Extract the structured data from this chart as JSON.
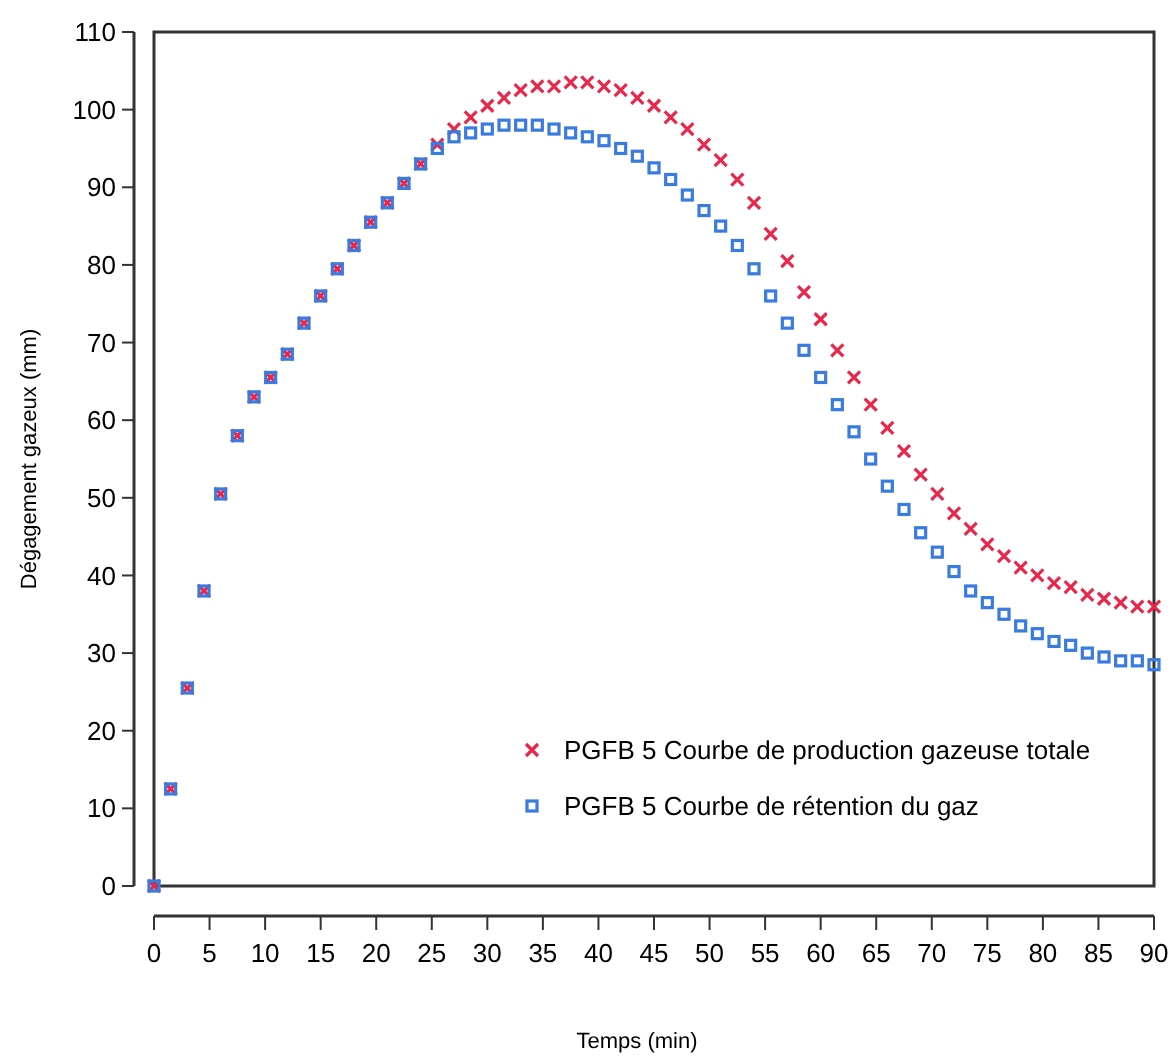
{
  "chart_data": {
    "type": "scatter",
    "xlabel": "Temps (min)",
    "ylabel": "Dégagement gazeux (mm)",
    "x": [
      0,
      1.5,
      3,
      4.5,
      6,
      7.5,
      9,
      10.5,
      12,
      13.5,
      15,
      16.5,
      18,
      19.5,
      21,
      22.5,
      24,
      25.5,
      27,
      28.5,
      30,
      31.5,
      33,
      34.5,
      36,
      37.5,
      39,
      40.5,
      42,
      43.5,
      45,
      46.5,
      48,
      49.5,
      51,
      52.5,
      54,
      55.5,
      57,
      58.5,
      60,
      61.5,
      63,
      64.5,
      66,
      67.5,
      69,
      70.5,
      72,
      73.5,
      75,
      76.5,
      78,
      79.5,
      81,
      82.5,
      84,
      85.5,
      87,
      88.5,
      90
    ],
    "series": [
      {
        "name": "PGFB 5 Courbe de production gazeuse totale",
        "color": "#e8274b",
        "marker": "cross",
        "values": [
          0,
          12.5,
          25.5,
          38,
          50.5,
          58,
          63,
          65.5,
          68.5,
          72.5,
          76,
          79.5,
          82.5,
          85.5,
          88,
          90.5,
          93,
          95.5,
          97.5,
          99,
          100.5,
          101.5,
          102.5,
          103,
          103,
          103.5,
          103.5,
          103,
          102.5,
          101.5,
          100.5,
          99,
          97.5,
          95.5,
          93.5,
          91,
          88,
          84,
          80.5,
          76.5,
          73,
          69,
          65.5,
          62,
          59,
          56,
          53,
          50.5,
          48,
          46,
          44,
          42.5,
          41,
          40,
          39,
          38.5,
          37.5,
          37,
          36.5,
          36,
          36
        ]
      },
      {
        "name": "PGFB 5 Courbe de rétention du gaz",
        "color": "#3a7be0",
        "marker": "square",
        "values": [
          0,
          12.5,
          25.5,
          38,
          50.5,
          58,
          63,
          65.5,
          68.5,
          72.5,
          76,
          79.5,
          82.5,
          85.5,
          88,
          90.5,
          93,
          95,
          96.5,
          97,
          97.5,
          98,
          98,
          98,
          97.5,
          97,
          96.5,
          96,
          95,
          94,
          92.5,
          91,
          89,
          87,
          85,
          82.5,
          79.5,
          76,
          72.5,
          69,
          65.5,
          62,
          58.5,
          55,
          51.5,
          48.5,
          45.5,
          43,
          40.5,
          38,
          36.5,
          35,
          33.5,
          32.5,
          31.5,
          31,
          30,
          29.5,
          29,
          29,
          28.5
        ]
      }
    ],
    "xlim": [
      0,
      90
    ],
    "xticks": [
      0,
      5,
      10,
      15,
      20,
      25,
      30,
      35,
      40,
      45,
      50,
      55,
      60,
      65,
      70,
      75,
      80,
      85,
      90
    ],
    "ylim": [
      0,
      110
    ],
    "yticks": [
      0,
      10,
      20,
      30,
      40,
      50,
      60,
      70,
      80,
      90,
      100,
      110
    ],
    "grid": false,
    "legend": "bottom right"
  }
}
